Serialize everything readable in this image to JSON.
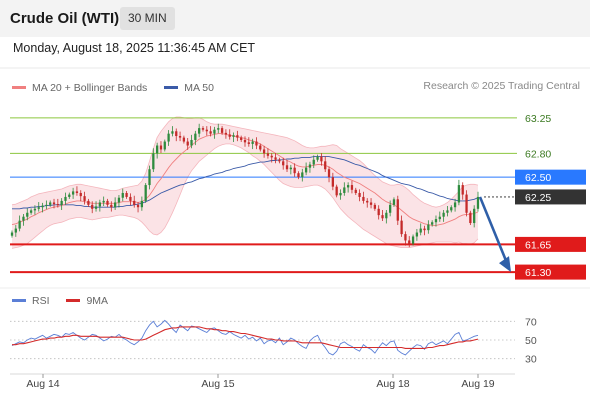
{
  "header": {
    "title": "Crude Oil (WTI)",
    "timeframe": "30 MIN",
    "datetime": "Monday, August 18, 2025 11:36:45 AM CET"
  },
  "legend": {
    "bollinger_label": "MA 20 + Bollinger Bands",
    "ma50_label": "MA 50",
    "copyright": "Research © 2025 Trading Central",
    "rsi_label": "RSI",
    "rsi_ma_label": "9MA"
  },
  "colors": {
    "up": "#2e8b3e",
    "down": "#c42a2a",
    "ma20": "#f08080",
    "band_fill": "#fadadd",
    "ma50": "#3b5ba8",
    "green_level": "#8cc63f",
    "pivot_blue": "#2979ff",
    "support_red": "#e01b1b",
    "current_price_box": "#333333",
    "forecast_arrow": "#2f5fa8",
    "rsi_line": "#5b7fd6",
    "rsi_ma_line": "#d42b2b"
  },
  "chart_data": [
    {
      "type": "line",
      "name": "price",
      "x_labels": [
        "Aug 14",
        "Aug 15",
        "Aug 18",
        "Aug 19"
      ],
      "ylim": [
        61.2,
        63.45
      ],
      "grid": false,
      "y_ticks": [],
      "horizontal_levels": [
        {
          "value": 63.25,
          "label": "63.25",
          "style": "resistance"
        },
        {
          "value": 62.8,
          "label": "62.80",
          "style": "resistance"
        },
        {
          "value": 62.5,
          "label": "62.50",
          "style": "pivot"
        },
        {
          "value": 61.65,
          "label": "61.65",
          "style": "support"
        },
        {
          "value": 61.3,
          "label": "61.30",
          "style": "support"
        }
      ],
      "current_price": {
        "value": 62.25,
        "label": "62.25"
      },
      "forecast": {
        "from": 62.25,
        "to": 61.3
      },
      "close": [
        61.8,
        61.85,
        61.95,
        62.0,
        62.05,
        62.08,
        62.1,
        62.12,
        62.14,
        62.15,
        62.18,
        62.16,
        62.15,
        62.2,
        62.25,
        62.28,
        62.32,
        62.3,
        62.26,
        62.2,
        62.15,
        62.1,
        62.13,
        62.18,
        62.2,
        62.15,
        62.12,
        62.18,
        62.24,
        62.3,
        62.25,
        62.2,
        62.15,
        62.12,
        62.2,
        62.4,
        62.6,
        62.8,
        62.9,
        62.85,
        62.95,
        63.05,
        63.08,
        63.02,
        63.0,
        62.95,
        62.9,
        62.97,
        63.05,
        63.12,
        63.1,
        63.08,
        63.05,
        63.1,
        63.12,
        63.06,
        63.04,
        63.01,
        63.03,
        63.0,
        62.97,
        62.94,
        62.92,
        62.95,
        62.9,
        62.85,
        62.8,
        62.77,
        62.75,
        62.72,
        62.7,
        62.65,
        62.6,
        62.62,
        62.55,
        62.5,
        62.56,
        62.62,
        62.66,
        62.72,
        62.76,
        62.7,
        62.6,
        62.5,
        62.38,
        62.27,
        62.3,
        62.37,
        62.4,
        62.34,
        62.3,
        62.25,
        62.2,
        62.18,
        62.15,
        62.1,
        62.02,
        61.98,
        62.05,
        62.15,
        62.22,
        61.95,
        61.78,
        61.7,
        61.66,
        61.75,
        61.8,
        61.85,
        61.83,
        61.9,
        61.93,
        61.97,
        62.0,
        62.05,
        62.08,
        62.12,
        62.18,
        62.4,
        62.28,
        62.05,
        61.92,
        62.1,
        62.25
      ],
      "ma20": [
        61.9,
        61.91,
        61.93,
        61.95,
        61.97,
        62.0,
        62.02,
        62.05,
        62.07,
        62.09,
        62.11,
        62.12,
        62.13,
        62.14,
        62.16,
        62.18,
        62.19,
        62.2,
        62.2,
        62.19,
        62.18,
        62.17,
        62.17,
        62.17,
        62.17,
        62.17,
        62.17,
        62.17,
        62.18,
        62.19,
        62.19,
        62.19,
        62.19,
        62.18,
        62.19,
        62.22,
        62.27,
        62.34,
        62.42,
        62.48,
        62.55,
        62.62,
        62.68,
        62.73,
        62.78,
        62.82,
        62.86,
        62.9,
        62.94,
        62.98,
        63.0,
        63.02,
        63.03,
        63.04,
        63.05,
        63.05,
        63.04,
        63.03,
        63.02,
        63.01,
        63.0,
        62.99,
        62.97,
        62.96,
        62.94,
        62.92,
        62.89,
        62.86,
        62.83,
        62.8,
        62.77,
        62.74,
        62.71,
        62.69,
        62.66,
        62.64,
        62.63,
        62.63,
        62.64,
        62.65,
        62.66,
        62.66,
        62.65,
        62.63,
        62.6,
        62.56,
        62.53,
        62.5,
        62.48,
        62.46,
        62.44,
        62.42,
        62.39,
        62.36,
        62.33,
        62.3,
        62.26,
        62.22,
        62.19,
        62.17,
        62.15,
        62.12,
        62.08,
        62.04,
        62.0,
        61.97,
        61.95,
        61.93,
        61.91,
        61.9,
        61.89,
        61.89,
        61.9,
        61.91,
        61.93,
        61.95,
        61.97,
        62.0,
        62.02,
        62.03,
        62.03,
        62.04,
        62.06
      ],
      "bb_upper": [
        62.15,
        62.16,
        62.18,
        62.2,
        62.22,
        62.25,
        62.27,
        62.29,
        62.3,
        62.31,
        62.32,
        62.33,
        62.34,
        62.35,
        62.37,
        62.39,
        62.4,
        62.41,
        62.41,
        62.4,
        62.39,
        62.38,
        62.37,
        62.36,
        62.35,
        62.34,
        62.33,
        62.33,
        62.34,
        62.36,
        62.37,
        62.38,
        62.39,
        62.4,
        62.45,
        62.55,
        62.7,
        62.86,
        63.0,
        63.08,
        63.14,
        63.2,
        63.24,
        63.26,
        63.26,
        63.25,
        63.24,
        63.24,
        63.25,
        63.25,
        63.23,
        63.2,
        63.18,
        63.17,
        63.17,
        63.17,
        63.16,
        63.15,
        63.14,
        63.13,
        63.12,
        63.11,
        63.1,
        63.09,
        63.08,
        63.07,
        63.06,
        63.05,
        63.04,
        63.03,
        63.02,
        63.01,
        63.0,
        62.98,
        62.96,
        62.93,
        62.9,
        62.88,
        62.87,
        62.87,
        62.88,
        62.89,
        62.89,
        62.9,
        62.91,
        62.9,
        62.86,
        62.83,
        62.8,
        62.77,
        62.74,
        62.71,
        62.67,
        62.62,
        62.57,
        62.52,
        62.48,
        62.44,
        62.42,
        62.4,
        62.4,
        62.41,
        62.4,
        62.37,
        62.33,
        62.28,
        62.24,
        62.2,
        62.17,
        62.15,
        62.13,
        62.12,
        62.13,
        62.15,
        62.18,
        62.22,
        62.27,
        62.32,
        62.38,
        62.4,
        62.41,
        62.41,
        62.4
      ],
      "bb_lower": [
        61.6,
        61.61,
        61.62,
        61.64,
        61.66,
        61.7,
        61.74,
        61.78,
        61.82,
        61.86,
        61.89,
        61.91,
        61.92,
        61.93,
        61.95,
        61.97,
        61.98,
        61.99,
        61.99,
        61.98,
        61.97,
        61.96,
        61.97,
        61.98,
        61.99,
        61.99,
        62.0,
        62.01,
        62.02,
        62.02,
        62.01,
        62.0,
        61.99,
        61.97,
        61.93,
        61.88,
        61.82,
        61.78,
        61.77,
        61.8,
        61.86,
        61.95,
        62.05,
        62.16,
        62.28,
        62.4,
        62.5,
        62.58,
        62.64,
        62.7,
        62.74,
        62.78,
        62.82,
        62.86,
        62.89,
        62.91,
        62.92,
        62.92,
        62.91,
        62.89,
        62.87,
        62.84,
        62.81,
        62.77,
        62.74,
        62.7,
        62.66,
        62.61,
        62.56,
        62.51,
        62.46,
        62.42,
        62.4,
        62.38,
        62.37,
        62.37,
        62.37,
        62.38,
        62.39,
        62.4,
        62.4,
        62.38,
        62.35,
        62.3,
        62.24,
        62.17,
        62.1,
        62.05,
        62.0,
        61.96,
        61.92,
        61.88,
        61.84,
        61.81,
        61.78,
        61.75,
        61.72,
        61.69,
        61.66,
        61.64,
        61.63,
        61.62,
        61.61,
        61.61,
        61.61,
        61.62,
        61.63,
        61.64,
        61.65,
        61.66,
        61.67,
        61.68,
        61.68,
        61.68,
        61.68,
        61.68,
        61.67,
        61.68,
        61.66,
        61.66,
        61.65,
        61.67,
        61.72
      ],
      "ma50": [
        62.1,
        62.1,
        62.1,
        62.11,
        62.11,
        62.12,
        62.12,
        62.13,
        62.13,
        62.14,
        62.14,
        62.15,
        62.15,
        62.15,
        62.15,
        62.15,
        62.15,
        62.14,
        62.14,
        62.13,
        62.13,
        62.12,
        62.12,
        62.12,
        62.12,
        62.12,
        62.12,
        62.12,
        62.13,
        62.13,
        62.14,
        62.14,
        62.15,
        62.16,
        62.17,
        62.19,
        62.21,
        62.24,
        62.27,
        62.3,
        62.32,
        62.34,
        62.36,
        62.38,
        62.4,
        62.41,
        62.43,
        62.44,
        62.46,
        62.48,
        62.49,
        62.51,
        62.52,
        62.54,
        62.55,
        62.56,
        62.58,
        62.59,
        62.61,
        62.62,
        62.63,
        62.64,
        62.66,
        62.67,
        62.68,
        62.69,
        62.69,
        62.7,
        62.71,
        62.71,
        62.72,
        62.72,
        62.73,
        62.73,
        62.74,
        62.74,
        62.75,
        62.75,
        62.75,
        62.76,
        62.76,
        62.76,
        62.76,
        62.76,
        62.75,
        62.74,
        62.73,
        62.72,
        62.7,
        62.68,
        62.66,
        62.65,
        62.63,
        62.61,
        62.59,
        62.57,
        62.55,
        62.52,
        62.5,
        62.48,
        62.46,
        62.44,
        62.42,
        62.41,
        62.4,
        62.38,
        62.36,
        62.35,
        62.33,
        62.31,
        62.3,
        62.28,
        62.26,
        62.25,
        62.23,
        62.22,
        62.21,
        62.2,
        62.2,
        62.2,
        62.21,
        62.22,
        62.24
      ]
    },
    {
      "type": "line",
      "name": "rsi",
      "ylim": [
        20,
        80
      ],
      "y_ticks": [
        30,
        50,
        70
      ],
      "grid": false,
      "rsi": [
        44,
        46,
        48,
        47,
        50,
        52,
        51,
        53,
        55,
        52,
        54,
        56,
        55,
        53,
        57,
        56,
        58,
        55,
        52,
        50,
        53,
        56,
        55,
        52,
        49,
        51,
        54,
        53,
        56,
        52,
        50,
        47,
        45,
        48,
        52,
        60,
        66,
        70,
        64,
        67,
        71,
        67,
        62,
        58,
        66,
        63,
        60,
        65,
        64,
        62,
        60,
        58,
        62,
        63,
        60,
        57,
        56,
        59,
        56,
        54,
        52,
        55,
        51,
        53,
        49,
        52,
        46,
        49,
        50,
        47,
        52,
        45,
        48,
        52,
        50,
        46,
        43,
        41,
        49,
        53,
        55,
        47,
        42,
        36,
        34,
        38,
        46,
        48,
        45,
        43,
        40,
        38,
        45,
        42,
        40,
        36,
        42,
        47,
        44,
        48,
        49,
        39,
        36,
        34,
        38,
        42,
        45,
        44,
        40,
        46,
        48,
        45,
        47,
        49,
        46,
        51,
        56,
        58,
        49,
        50,
        52,
        54,
        55
      ],
      "rsi_ma": [
        45,
        45,
        46,
        46,
        47,
        48,
        49,
        50,
        51,
        51,
        52,
        52,
        53,
        53,
        54,
        54,
        55,
        55,
        54,
        54,
        54,
        54,
        54,
        53,
        53,
        53,
        53,
        53,
        53,
        53,
        52,
        51,
        50,
        50,
        50,
        51,
        53,
        55,
        57,
        59,
        61,
        62,
        63,
        63,
        64,
        64,
        64,
        64,
        64,
        64,
        63,
        62,
        62,
        61,
        61,
        60,
        60,
        59,
        59,
        58,
        57,
        57,
        56,
        55,
        54,
        53,
        52,
        51,
        51,
        50,
        50,
        49,
        49,
        49,
        49,
        48,
        47,
        47,
        47,
        47,
        47,
        47,
        46,
        45,
        44,
        43,
        42,
        42,
        42,
        42,
        42,
        42,
        42,
        42,
        42,
        42,
        42,
        42,
        42,
        42,
        42,
        42,
        42,
        41,
        41,
        41,
        41,
        41,
        41,
        42,
        42,
        43,
        44,
        44,
        45,
        46,
        47,
        48,
        48,
        49,
        49,
        50,
        51
      ]
    }
  ]
}
